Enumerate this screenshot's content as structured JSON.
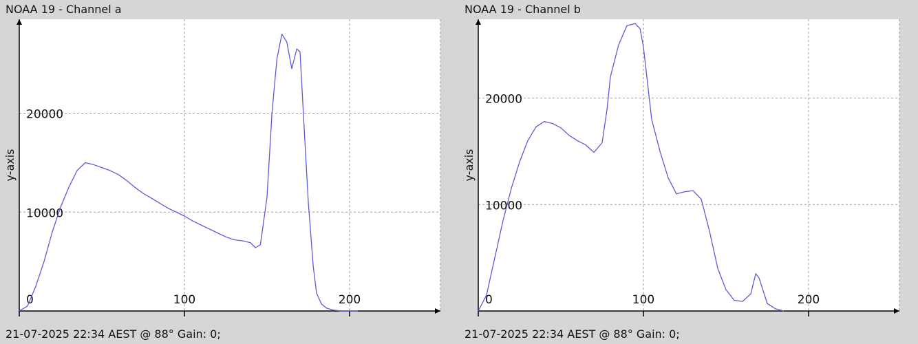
{
  "panels": [
    {
      "title": "NOAA 19 - Channel a",
      "footer": "21-07-2025 22:34 AEST @ 88° Gain: 0;",
      "ylabel": "y-axis"
    },
    {
      "title": "NOAA 19 - Channel b",
      "footer": "21-07-2025 22:34 AEST @ 88° Gain: 0;",
      "ylabel": "y-axis"
    }
  ],
  "colors": {
    "line": "#5b5bd6",
    "grid": "#9a9a9a",
    "axis": "#000000",
    "plot_bg": "#ffffff",
    "window_bg": "#d6d6d6"
  },
  "chart_data": [
    {
      "type": "line",
      "title": "NOAA 19 - Channel a",
      "xlabel": "",
      "ylabel": "y-axis",
      "xlim": [
        0,
        255
      ],
      "ylim": [
        0,
        29500
      ],
      "xticks": [
        0,
        100,
        200
      ],
      "yticks": [
        10000,
        20000
      ],
      "grid": true,
      "series": [
        {
          "x": [
            0,
            5,
            10,
            15,
            20,
            25,
            30,
            35,
            40,
            45,
            50,
            55,
            60,
            65,
            70,
            75,
            80,
            85,
            90,
            95,
            100,
            105,
            110,
            115,
            120,
            125,
            130,
            135,
            140,
            143,
            146,
            150,
            153,
            156,
            159,
            162,
            165,
            168,
            170,
            172,
            175,
            178,
            180,
            183,
            186,
            190,
            195,
            200,
            205
          ],
          "y": [
            0,
            500,
            2500,
            5000,
            8000,
            10500,
            12500,
            14200,
            15000,
            14800,
            14500,
            14200,
            13800,
            13200,
            12500,
            11900,
            11400,
            10900,
            10400,
            10000,
            9600,
            9100,
            8700,
            8300,
            7900,
            7500,
            7200,
            7100,
            6900,
            6400,
            6700,
            11500,
            20000,
            25500,
            28000,
            27200,
            24500,
            26500,
            26200,
            20000,
            11000,
            4500,
            1800,
            700,
            300,
            100,
            0,
            0,
            0
          ]
        }
      ]
    },
    {
      "type": "line",
      "title": "NOAA 19 - Channel b",
      "xlabel": "",
      "ylabel": "y-axis",
      "xlim": [
        0,
        255
      ],
      "ylim": [
        0,
        27400
      ],
      "xticks": [
        0,
        100,
        200
      ],
      "yticks": [
        10000,
        20000
      ],
      "grid": true,
      "series": [
        {
          "x": [
            0,
            5,
            10,
            15,
            20,
            25,
            30,
            35,
            40,
            45,
            50,
            55,
            60,
            65,
            70,
            75,
            78,
            80,
            85,
            90,
            95,
            98,
            100,
            105,
            110,
            115,
            120,
            125,
            130,
            135,
            140,
            145,
            150,
            155,
            160,
            165,
            168,
            170,
            175,
            180,
            185
          ],
          "y": [
            0,
            1500,
            5000,
            8500,
            11500,
            14000,
            16000,
            17300,
            17800,
            17600,
            17200,
            16500,
            16000,
            15600,
            14900,
            15800,
            19000,
            22000,
            25000,
            26800,
            27000,
            26500,
            24800,
            18000,
            15000,
            12500,
            11000,
            11200,
            11300,
            10500,
            7500,
            4000,
            2000,
            1000,
            900,
            1600,
            3500,
            3100,
            700,
            200,
            0
          ]
        }
      ]
    }
  ]
}
